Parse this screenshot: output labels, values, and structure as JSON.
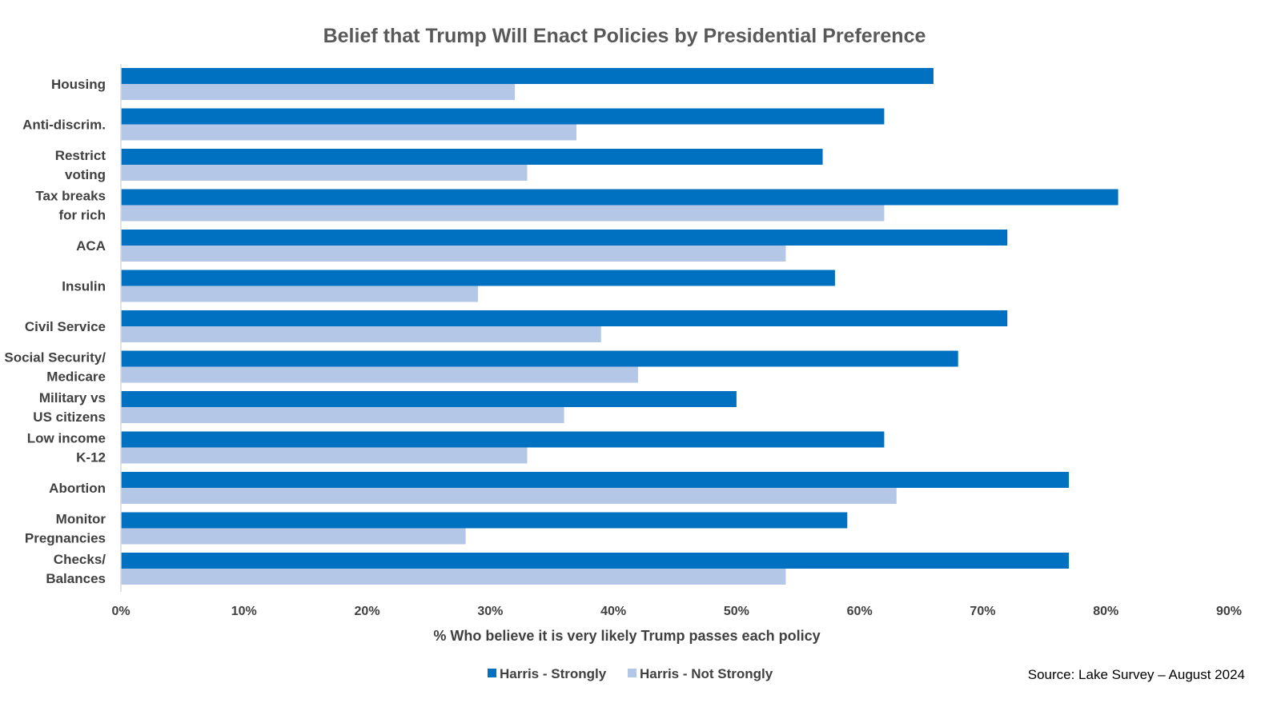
{
  "chart_data": {
    "type": "bar",
    "orientation": "horizontal",
    "title": "Belief that Trump Will Enact Policies by Presidential Preference",
    "xlabel": "% Who believe it is very likely Trump passes each policy",
    "ylabel": "",
    "xlim": [
      0,
      90
    ],
    "x_ticks": [
      0,
      10,
      20,
      30,
      40,
      50,
      60,
      70,
      80,
      90
    ],
    "tick_suffix": "%",
    "grid": false,
    "legend_position": "bottom",
    "categories": [
      [
        "Housing"
      ],
      [
        "Anti-discrim."
      ],
      [
        "Restrict",
        "voting"
      ],
      [
        "Tax breaks",
        "for rich"
      ],
      [
        "ACA"
      ],
      [
        "Insulin"
      ],
      [
        "Civil Service"
      ],
      [
        "Social Security/",
        "Medicare"
      ],
      [
        "Military vs",
        "US citizens"
      ],
      [
        "Low income",
        "K-12"
      ],
      [
        "Abortion"
      ],
      [
        "Monitor",
        "Pregnancies"
      ],
      [
        "Checks/",
        "Balances"
      ]
    ],
    "series": [
      {
        "name": "Harris - Strongly",
        "color": "#0070C0",
        "values": [
          66,
          62,
          57,
          81,
          72,
          58,
          72,
          68,
          50,
          62,
          77,
          59,
          77
        ]
      },
      {
        "name": "Harris - Not Strongly",
        "color": "#B4C7E7",
        "values": [
          32,
          37,
          33,
          62,
          54,
          29,
          39,
          42,
          36,
          33,
          63,
          28,
          54
        ]
      }
    ]
  },
  "source": "Source: Lake Survey – August 2024",
  "colors": {
    "title": "#595959",
    "text": "#404040",
    "axis_line": "#D9D9D9",
    "background": "#FFFFFF"
  }
}
